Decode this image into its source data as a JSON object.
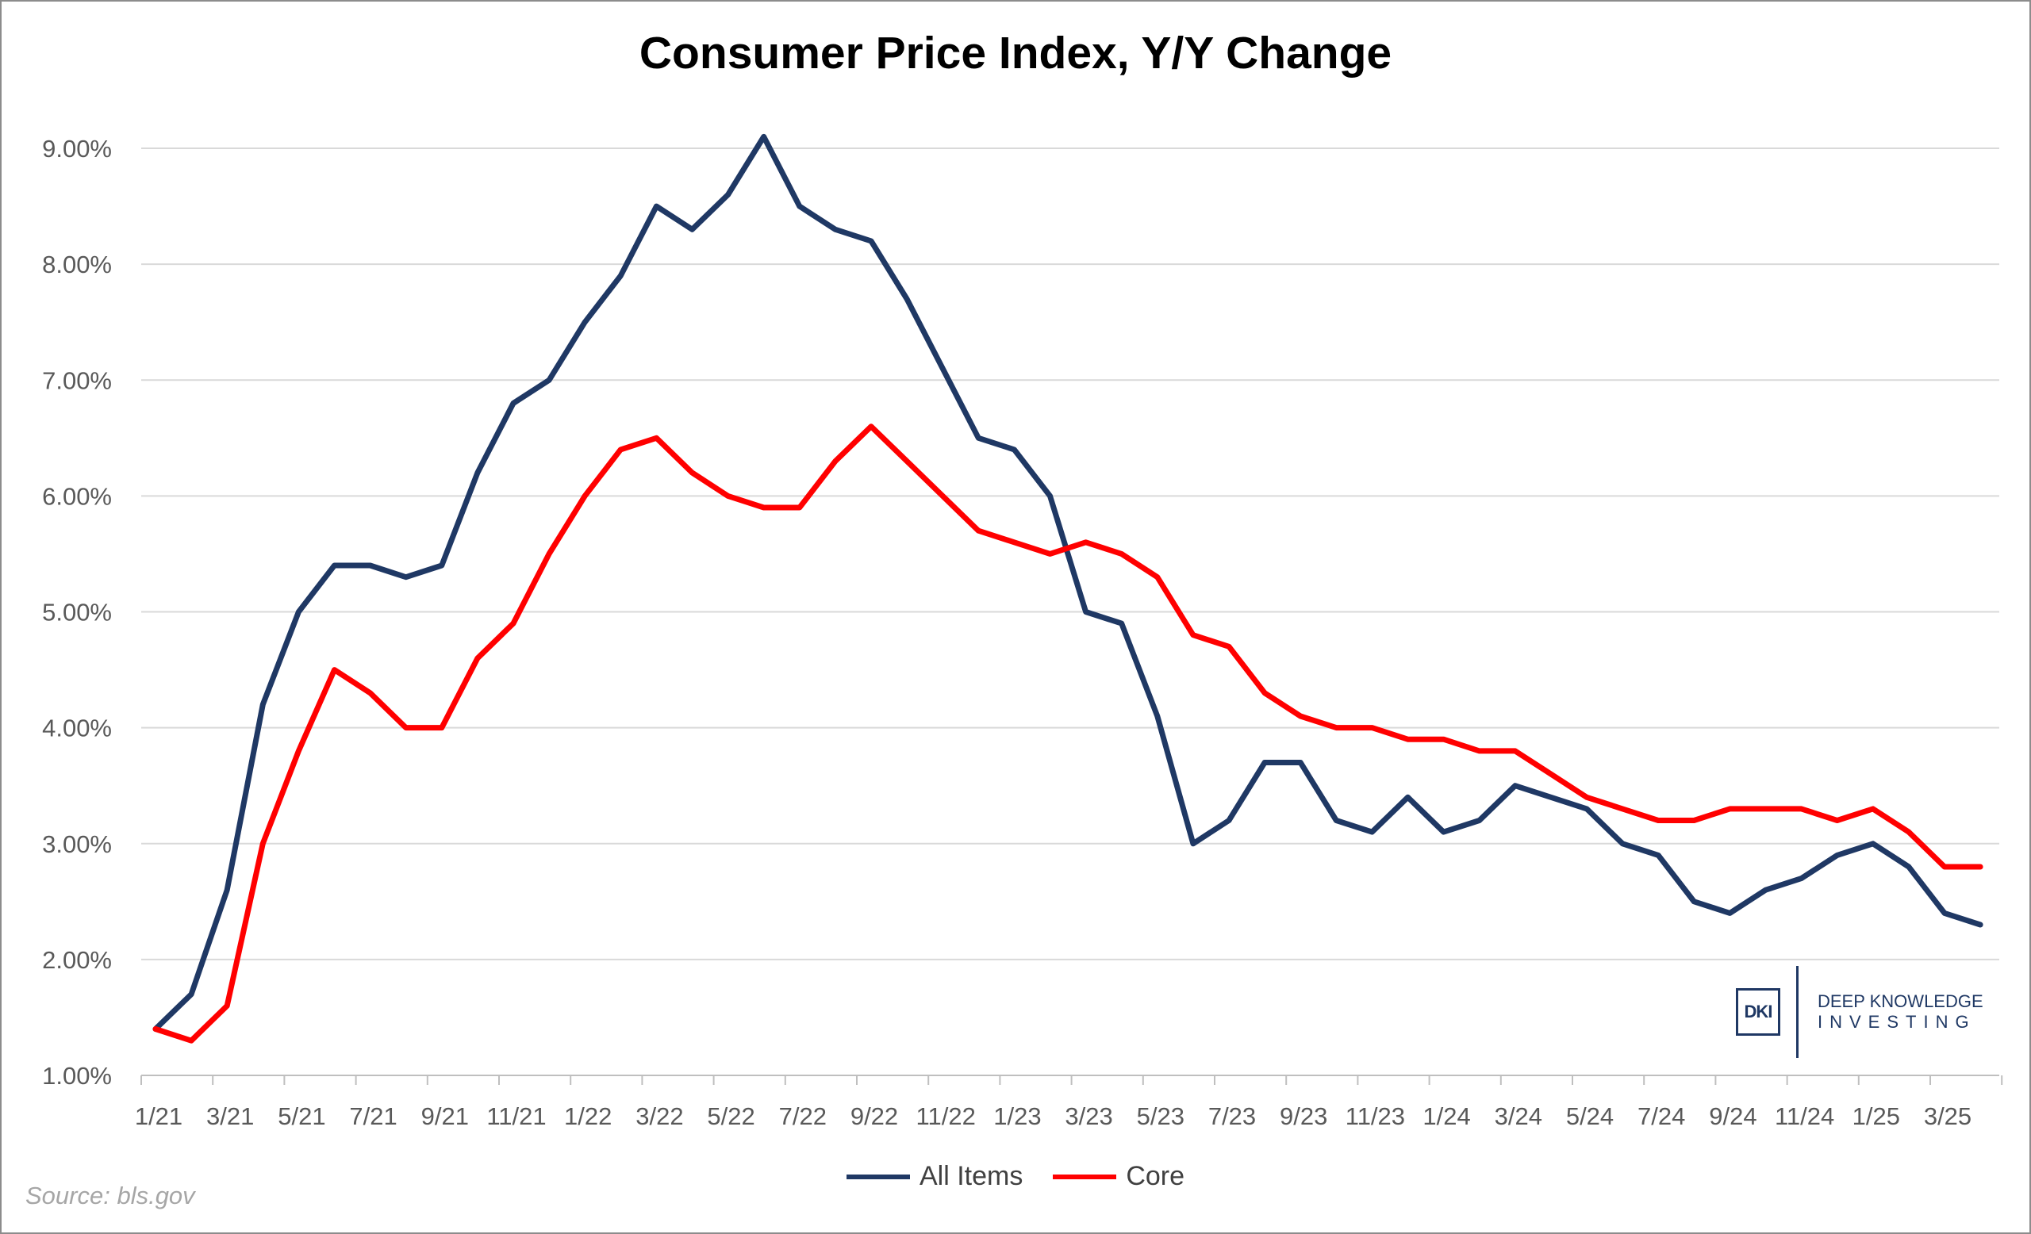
{
  "chart_data": {
    "type": "line",
    "title": "Consumer Price Index, Y/Y Change",
    "xlabel": "",
    "ylabel": "",
    "ylim": [
      1.0,
      9.0
    ],
    "yticks": [
      "1.00%",
      "2.00%",
      "3.00%",
      "4.00%",
      "5.00%",
      "6.00%",
      "7.00%",
      "8.00%",
      "9.00%"
    ],
    "xtick_labels": [
      "1/21",
      "3/21",
      "5/21",
      "7/21",
      "9/21",
      "11/21",
      "1/22",
      "3/22",
      "5/22",
      "7/22",
      "9/22",
      "11/22",
      "1/23",
      "3/23",
      "5/23",
      "7/23",
      "9/23",
      "11/23",
      "1/24",
      "3/24",
      "5/24",
      "7/24",
      "9/24",
      "11/24",
      "1/25",
      "3/25"
    ],
    "grid": true,
    "legend_position": "bottom",
    "series": [
      {
        "name": "All Items",
        "color": "#1f3864",
        "values": [
          1.4,
          1.7,
          2.6,
          4.2,
          5.0,
          5.4,
          5.4,
          5.3,
          5.4,
          6.2,
          6.8,
          7.0,
          7.5,
          7.9,
          8.5,
          8.3,
          8.6,
          9.1,
          8.5,
          8.3,
          8.2,
          7.7,
          7.1,
          6.5,
          6.4,
          6.0,
          5.0,
          4.9,
          4.1,
          3.0,
          3.2,
          3.7,
          3.7,
          3.2,
          3.1,
          3.4,
          3.1,
          3.2,
          3.5,
          3.4,
          3.3,
          3.0,
          2.9,
          2.5,
          2.4,
          2.6,
          2.7,
          2.9,
          3.0,
          2.8,
          2.4,
          2.3
        ]
      },
      {
        "name": "Core",
        "color": "#ff0000",
        "values": [
          1.4,
          1.3,
          1.6,
          3.0,
          3.8,
          4.5,
          4.3,
          4.0,
          4.0,
          4.6,
          4.9,
          5.5,
          6.0,
          6.4,
          6.5,
          6.2,
          6.0,
          5.9,
          5.9,
          6.3,
          6.6,
          6.3,
          6.0,
          5.7,
          5.6,
          5.5,
          5.6,
          5.5,
          5.3,
          4.8,
          4.7,
          4.3,
          4.1,
          4.0,
          4.0,
          3.9,
          3.9,
          3.8,
          3.8,
          3.6,
          3.4,
          3.3,
          3.2,
          3.2,
          3.3,
          3.3,
          3.3,
          3.2,
          3.3,
          3.1,
          2.8,
          2.8
        ]
      }
    ]
  },
  "source": "Source: bls.gov",
  "logo": {
    "mark": "DKI",
    "line1": "DEEP KNOWLEDGE",
    "line2": "INVESTING"
  }
}
